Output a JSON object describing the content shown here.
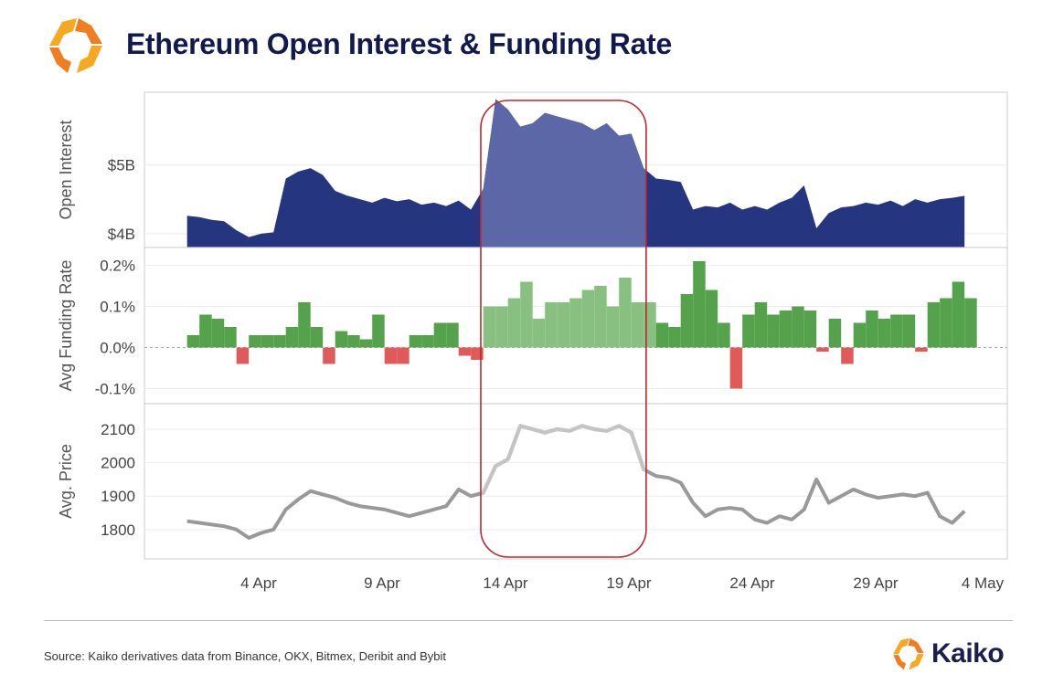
{
  "header": {
    "title": "Ethereum Open Interest & Funding Rate"
  },
  "footer": {
    "source": "Source: Kaiko derivatives data from Binance, OKX, Bitmex, Deribit and Bybit",
    "brand": "Kaiko"
  },
  "colors": {
    "oi": "#263580",
    "oi_highlight": "#5b67a6",
    "fr_pos": "#55a24c",
    "fr_pos_highlight": "#88c081",
    "fr_neg": "#e05a5a",
    "price": "#999999",
    "price_highlight": "#c4c4c4",
    "box": "#c0272d",
    "logo_a": "#f7a823",
    "logo_b": "#f07d22"
  },
  "chart_data": [
    {
      "type": "area",
      "ylabel": "Open Interest",
      "yticks": [
        {
          "v": 4,
          "label": "$4B"
        },
        {
          "v": 5,
          "label": "$5B"
        }
      ],
      "ylim": [
        3.8,
        6.05
      ],
      "unit": "USD billions",
      "day_start": 0.1,
      "day_step": 0.5,
      "values": [
        4.26,
        4.24,
        4.2,
        4.18,
        4.05,
        3.95,
        4.0,
        4.02,
        4.8,
        4.9,
        4.95,
        4.85,
        4.62,
        4.55,
        4.5,
        4.45,
        4.52,
        4.47,
        4.5,
        4.42,
        4.45,
        4.4,
        4.48,
        4.35,
        4.65,
        5.95,
        5.8,
        5.55,
        5.6,
        5.75,
        5.7,
        5.65,
        5.6,
        5.5,
        5.6,
        5.42,
        5.45,
        4.95,
        4.8,
        4.78,
        4.75,
        4.35,
        4.4,
        4.38,
        4.45,
        4.35,
        4.4,
        4.35,
        4.45,
        4.52,
        4.7,
        4.08,
        4.3,
        4.38,
        4.4,
        4.45,
        4.42,
        4.48,
        4.4,
        4.5,
        4.45,
        4.5,
        4.52,
        4.55
      ]
    },
    {
      "type": "bar",
      "ylabel": "Avg Funding Rate",
      "yticks": [
        {
          "v": -0.1,
          "label": "-0.1%"
        },
        {
          "v": 0,
          "label": "0.0%"
        },
        {
          "v": 0.1,
          "label": "0.1%"
        },
        {
          "v": 0.2,
          "label": "0.2%"
        }
      ],
      "ylim": [
        -0.11,
        0.23
      ],
      "unit": "percent",
      "day_start": 0.1,
      "day_step": 0.5,
      "values": [
        0.03,
        0.08,
        0.07,
        0.05,
        -0.04,
        0.03,
        0.03,
        0.03,
        0.05,
        0.11,
        0.05,
        -0.04,
        0.04,
        0.03,
        0.02,
        0.08,
        -0.04,
        -0.04,
        0.03,
        0.03,
        0.06,
        0.06,
        -0.02,
        -0.03,
        0.1,
        0.1,
        0.12,
        0.16,
        0.07,
        0.11,
        0.11,
        0.12,
        0.14,
        0.15,
        0.1,
        0.17,
        0.11,
        0.11,
        0.06,
        0.05,
        0.13,
        0.21,
        0.14,
        0.06,
        -0.1,
        0.08,
        0.11,
        0.08,
        0.09,
        0.1,
        0.09,
        -0.01,
        0.07,
        -0.04,
        0.06,
        0.09,
        0.07,
        0.08,
        0.08,
        -0.01,
        0.11,
        0.12,
        0.16,
        0.12
      ]
    },
    {
      "type": "line",
      "ylabel": "Avg. Price",
      "yticks": [
        {
          "v": 1800,
          "label": "1800"
        },
        {
          "v": 1900,
          "label": "1900"
        },
        {
          "v": 2000,
          "label": "2000"
        },
        {
          "v": 2100,
          "label": "2100"
        }
      ],
      "ylim": [
        1745,
        2160
      ],
      "unit": "USD",
      "day_start": 0.1,
      "day_step": 0.5,
      "values": [
        1825,
        1820,
        1815,
        1810,
        1800,
        1775,
        1790,
        1800,
        1860,
        1890,
        1915,
        1905,
        1895,
        1880,
        1870,
        1865,
        1860,
        1850,
        1840,
        1850,
        1860,
        1870,
        1920,
        1900,
        1910,
        1990,
        2010,
        2110,
        2100,
        2090,
        2100,
        2095,
        2110,
        2100,
        2095,
        2110,
        2090,
        1980,
        1960,
        1955,
        1940,
        1880,
        1840,
        1860,
        1865,
        1860,
        1830,
        1820,
        1840,
        1830,
        1860,
        1950,
        1880,
        1900,
        1920,
        1905,
        1895,
        1900,
        1905,
        1900,
        1910,
        1840,
        1820,
        1855
      ]
    }
  ],
  "xaxis": {
    "origin": "1 Apr",
    "ticks": [
      {
        "day": 3,
        "label": "4 Apr"
      },
      {
        "day": 8,
        "label": "9 Apr"
      },
      {
        "day": 13,
        "label": "14 Apr"
      },
      {
        "day": 18,
        "label": "19 Apr"
      },
      {
        "day": 23,
        "label": "24 Apr"
      },
      {
        "day": 28,
        "label": "29 Apr"
      },
      {
        "day": 33,
        "label": "4 May"
      }
    ]
  },
  "highlight": {
    "from_day": 12.0,
    "to_day": 18.7
  }
}
